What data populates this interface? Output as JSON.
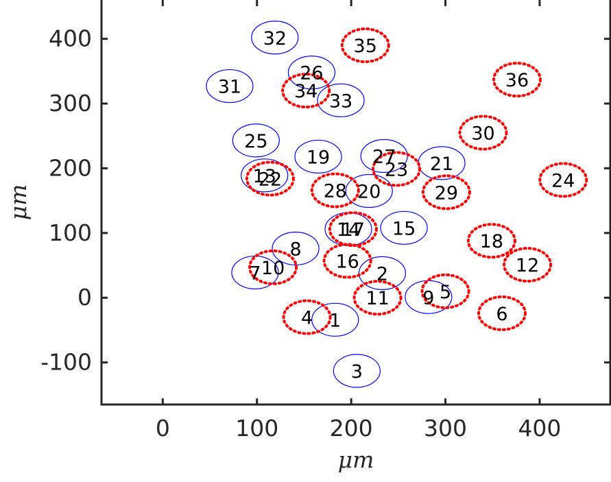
{
  "chart_data": {
    "type": "scatter",
    "title": "",
    "xlabel": "μm",
    "ylabel": "μm",
    "xlim": [
      -65,
      475
    ],
    "ylim": [
      -165,
      460
    ],
    "xticks": [
      0,
      100,
      200,
      300,
      400
    ],
    "yticks": [
      -100,
      0,
      100,
      200,
      300,
      400
    ],
    "xtick_labels": [
      "0",
      "100",
      "200",
      "300",
      "400"
    ],
    "ytick_labels": [
      "-100",
      "0",
      "100",
      "200",
      "300",
      "400"
    ],
    "grid": false,
    "colors": {
      "blue_series": "#0000ff",
      "red_series": "#ff0000",
      "axis": "#262626"
    },
    "series": [
      {
        "style": "blue-solid-ellipse",
        "points": [
          {
            "id": "1",
            "x": 183,
            "y": -34
          },
          {
            "id": "2",
            "x": 233,
            "y": 38
          },
          {
            "id": "3",
            "x": 206,
            "y": -113
          },
          {
            "id": "7",
            "x": 98,
            "y": 39
          },
          {
            "id": "8",
            "x": 141,
            "y": 76
          },
          {
            "id": "9",
            "x": 282,
            "y": 1
          },
          {
            "id": "13",
            "x": 108,
            "y": 189
          },
          {
            "id": "14",
            "x": 197,
            "y": 106
          },
          {
            "id": "15",
            "x": 256,
            "y": 108
          },
          {
            "id": "19",
            "x": 165,
            "y": 218
          },
          {
            "id": "20",
            "x": 219,
            "y": 165
          },
          {
            "id": "21",
            "x": 296,
            "y": 208
          },
          {
            "id": "25",
            "x": 99,
            "y": 243
          },
          {
            "id": "26",
            "x": 158,
            "y": 348
          },
          {
            "id": "27",
            "x": 235,
            "y": 219
          },
          {
            "id": "31",
            "x": 71,
            "y": 327
          },
          {
            "id": "32",
            "x": 119,
            "y": 402
          },
          {
            "id": "33",
            "x": 189,
            "y": 305
          }
        ]
      },
      {
        "style": "red-dotted-ellipse",
        "points": [
          {
            "id": "4",
            "x": 153,
            "y": -30
          },
          {
            "id": "5",
            "x": 300,
            "y": 10
          },
          {
            "id": "6",
            "x": 360,
            "y": -24
          },
          {
            "id": "10",
            "x": 117,
            "y": 47
          },
          {
            "id": "11",
            "x": 228,
            "y": 0
          },
          {
            "id": "12",
            "x": 387,
            "y": 51
          },
          {
            "id": "16",
            "x": 196,
            "y": 57
          },
          {
            "id": "17",
            "x": 202,
            "y": 106
          },
          {
            "id": "18",
            "x": 349,
            "y": 88
          },
          {
            "id": "22",
            "x": 114,
            "y": 184
          },
          {
            "id": "23",
            "x": 248,
            "y": 199
          },
          {
            "id": "24",
            "x": 425,
            "y": 182
          },
          {
            "id": "28",
            "x": 183,
            "y": 166
          },
          {
            "id": "29",
            "x": 301,
            "y": 163
          },
          {
            "id": "30",
            "x": 340,
            "y": 255
          },
          {
            "id": "34",
            "x": 152,
            "y": 320
          },
          {
            "id": "35",
            "x": 215,
            "y": 390
          },
          {
            "id": "36",
            "x": 376,
            "y": 337
          }
        ]
      }
    ]
  }
}
